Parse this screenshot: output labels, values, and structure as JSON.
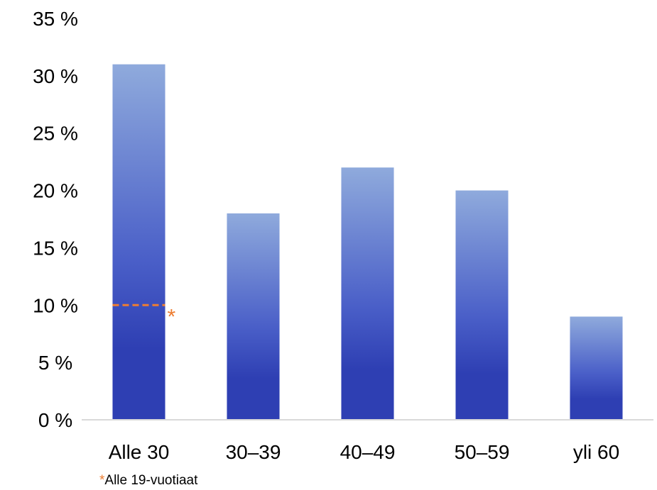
{
  "chart_data": {
    "type": "bar",
    "categories": [
      "Alle 30",
      "30–39",
      "40–49",
      "50–59",
      "yli 60"
    ],
    "values": [
      31,
      18,
      22,
      20,
      9
    ],
    "ylim": [
      0,
      35
    ],
    "y_ticks": [
      0,
      5,
      10,
      15,
      20,
      25,
      30,
      35
    ],
    "y_tick_labels": [
      "0 %",
      "5 %",
      "10 %",
      "15 %",
      "20 %",
      "25 %",
      "30 %",
      "35 %"
    ],
    "title": "",
    "xlabel": "",
    "ylabel": "",
    "grid": false,
    "bar_gradient": {
      "top": "#8FAADC",
      "bottom": "#2E3FB3"
    },
    "annotation": {
      "category_index": 0,
      "value": 10,
      "marker": "*",
      "style": "dashed",
      "color": "#ED7D31"
    }
  },
  "footnote": {
    "marker": "*",
    "text": "Alle 19-vuotiaat"
  }
}
